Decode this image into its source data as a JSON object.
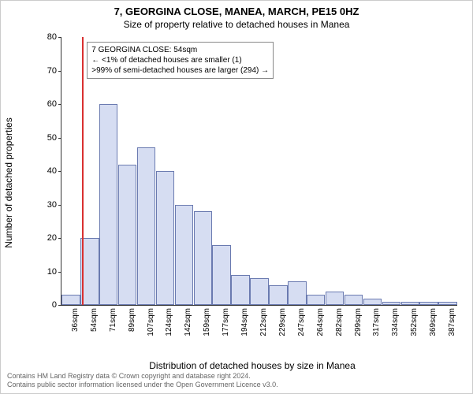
{
  "title": "7, GEORGINA CLOSE, MANEA, MARCH, PE15 0HZ",
  "subtitle": "Size of property relative to detached houses in Manea",
  "ylabel": "Number of detached properties",
  "xlabel": "Distribution of detached houses by size in Manea",
  "chart": {
    "type": "histogram",
    "ylim": [
      0,
      80
    ],
    "ytick_step": 10,
    "bar_fill": "#d6ddf2",
    "bar_stroke": "#6a7ab0",
    "background": "#ffffff",
    "marker_color": "#d93030",
    "marker_x_index": 1,
    "categories": [
      "36sqm",
      "54sqm",
      "71sqm",
      "89sqm",
      "107sqm",
      "124sqm",
      "142sqm",
      "159sqm",
      "177sqm",
      "194sqm",
      "212sqm",
      "229sqm",
      "247sqm",
      "264sqm",
      "282sqm",
      "299sqm",
      "317sqm",
      "334sqm",
      "352sqm",
      "369sqm",
      "387sqm"
    ],
    "values": [
      3,
      20,
      60,
      42,
      47,
      40,
      30,
      28,
      18,
      9,
      8,
      6,
      7,
      3,
      4,
      3,
      2,
      1,
      1,
      1,
      1
    ]
  },
  "annotation": {
    "line1": "7 GEORGINA CLOSE: 54sqm",
    "line2": "← <1% of detached houses are smaller (1)",
    "line3": ">99% of semi-detached houses are larger (294) →"
  },
  "footer": {
    "line1": "Contains HM Land Registry data © Crown copyright and database right 2024.",
    "line2": "Contains public sector information licensed under the Open Government Licence v3.0."
  }
}
